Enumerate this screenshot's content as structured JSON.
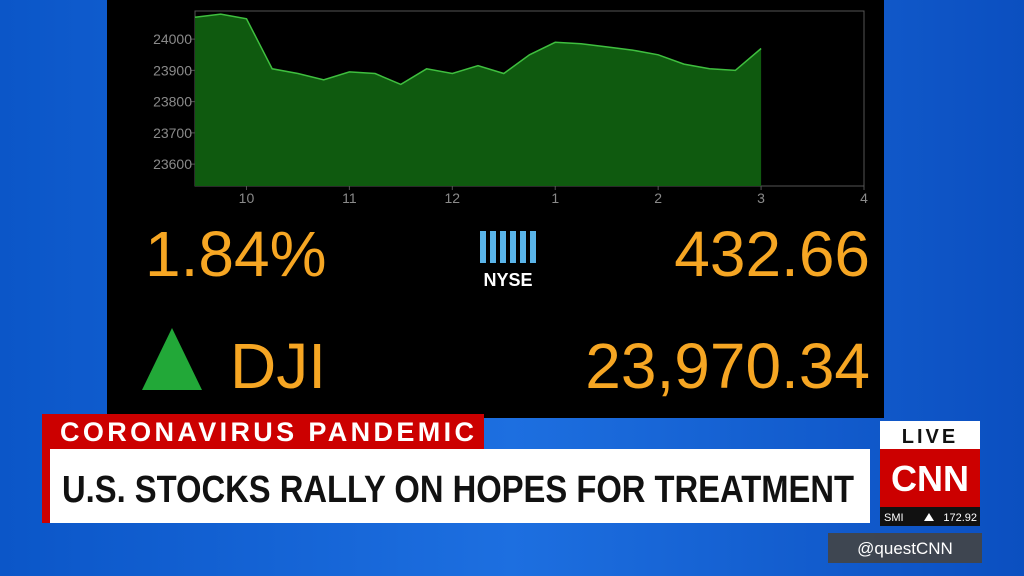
{
  "chart_data": {
    "type": "area",
    "x": [
      9.5,
      9.75,
      10,
      10.25,
      10.5,
      10.75,
      11,
      11.25,
      11.5,
      11.75,
      12,
      12.25,
      12.5,
      12.75,
      13,
      13.25,
      13.5,
      13.75,
      14,
      14.25,
      14.5,
      14.75,
      15
    ],
    "values": [
      24070,
      24080,
      24065,
      23905,
      23890,
      23870,
      23895,
      23890,
      23855,
      23905,
      23890,
      23915,
      23890,
      23950,
      23990,
      23985,
      23975,
      23965,
      23950,
      23920,
      23905,
      23900,
      23970
    ],
    "color": "#0f5a0f",
    "line_color": "#3fbf3f",
    "xlim": [
      9.5,
      16
    ],
    "xticks": [
      10,
      11,
      12,
      {
        "value": 13,
        "label": "1"
      },
      {
        "value": 14,
        "label": "2"
      },
      {
        "value": 15,
        "label": "3"
      },
      {
        "value": 16,
        "label": "4"
      }
    ],
    "ylim": [
      23530,
      24090
    ],
    "yticks": [
      23600,
      23700,
      23800,
      23900,
      24000
    ]
  },
  "quote": {
    "percent_change": "1.84%",
    "exchange": "NYSE",
    "points_change": "432.66",
    "index": "DJI",
    "level": "23,970.34"
  },
  "banner": {
    "topic": "CORONAVIRUS PANDEMIC",
    "headline": "U.S. STOCKS RALLY ON HOPES FOR TREATMENT"
  },
  "bug": {
    "live": "LIVE",
    "network": "CNN",
    "ticker_name": "SMI",
    "ticker_value": "172.92",
    "handle": "@questCNN"
  }
}
